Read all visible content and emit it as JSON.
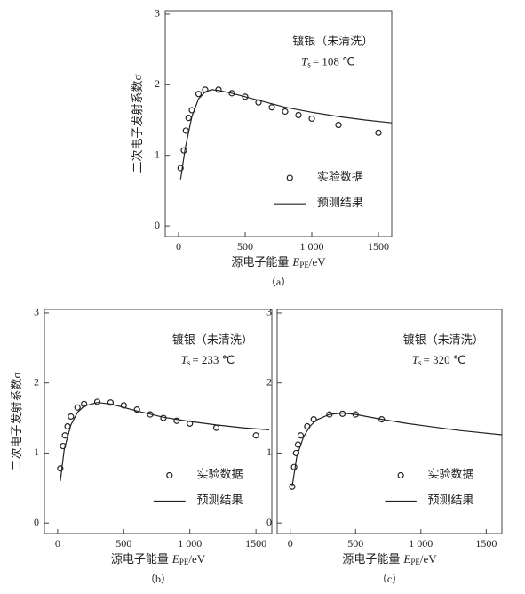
{
  "chart_data": [
    {
      "type": "line",
      "caption": "（a）",
      "y_label": "二次电子发射系数σ",
      "x_label": {
        "text": "源电子能量",
        "symbol": "E",
        "subscript": "PE",
        "unit": "/eV"
      },
      "annotation": {
        "text": "镀银（未清洗）",
        "symbol": "T",
        "subscript": "s",
        "value_text": "= 108 ℃"
      },
      "xlim": [
        -100,
        1600
      ],
      "ylim": [
        -0.15,
        3.05
      ],
      "xticks": [
        0,
        500,
        {
          "value": 1000,
          "label": "1 000"
        },
        1500
      ],
      "yticks": [
        0,
        1,
        2,
        3
      ],
      "series": [
        {
          "name": "实验数据",
          "style": "marker",
          "color": "#222",
          "x": [
            15,
            40,
            55,
            75,
            100,
            150,
            200,
            300,
            400,
            500,
            600,
            700,
            800,
            900,
            1000,
            1200,
            1500
          ],
          "values": [
            0.82,
            1.07,
            1.35,
            1.53,
            1.64,
            1.87,
            1.93,
            1.93,
            1.88,
            1.83,
            1.75,
            1.68,
            1.62,
            1.57,
            1.52,
            1.43,
            1.32
          ]
        },
        {
          "name": "预测结果",
          "style": "line",
          "color": "#222",
          "x": [
            15,
            50,
            100,
            150,
            200,
            250,
            300,
            400,
            600,
            800,
            1000,
            1200,
            1400,
            1600
          ],
          "values": [
            0.66,
            1.1,
            1.55,
            1.8,
            1.9,
            1.93,
            1.92,
            1.88,
            1.78,
            1.68,
            1.61,
            1.55,
            1.5,
            1.46
          ]
        }
      ]
    },
    {
      "type": "line",
      "caption": "（b）",
      "y_label": "二次电子发射系数σ",
      "x_label": {
        "text": "源电子能量",
        "symbol": "E",
        "subscript": "PE",
        "unit": "/eV"
      },
      "annotation": {
        "text": "镀银（未清洗）",
        "symbol": "T",
        "subscript": "s",
        "value_text": "= 233 ℃"
      },
      "xlim": [
        -100,
        1620
      ],
      "ylim": [
        -0.15,
        3.05
      ],
      "xticks": [
        0,
        500,
        {
          "value": 1000,
          "label": "1 000"
        },
        1500
      ],
      "yticks": [
        0,
        1,
        2,
        3
      ],
      "series": [
        {
          "name": "实验数据",
          "style": "marker",
          "color": "#222",
          "x": [
            20,
            40,
            55,
            75,
            100,
            150,
            200,
            300,
            400,
            500,
            600,
            700,
            800,
            900,
            1000,
            1200,
            1500
          ],
          "values": [
            0.78,
            1.1,
            1.25,
            1.38,
            1.52,
            1.65,
            1.7,
            1.73,
            1.72,
            1.68,
            1.62,
            1.55,
            1.5,
            1.46,
            1.42,
            1.36,
            1.25
          ]
        },
        {
          "name": "预测结果",
          "style": "line",
          "color": "#222",
          "x": [
            20,
            50,
            100,
            150,
            200,
            300,
            400,
            600,
            800,
            1000,
            1200,
            1400,
            1600
          ],
          "values": [
            0.6,
            1.05,
            1.4,
            1.58,
            1.67,
            1.72,
            1.7,
            1.6,
            1.51,
            1.45,
            1.4,
            1.36,
            1.33
          ]
        }
      ]
    },
    {
      "type": "line",
      "caption": "（c）",
      "x_label": {
        "text": "源电子能量",
        "symbol": "E",
        "subscript": "PE",
        "unit": "/eV"
      },
      "annotation": {
        "text": "镀银（未清洗）",
        "symbol": "T",
        "subscript": "s",
        "value_text": "= 320 ℃"
      },
      "xlim": [
        -100,
        1620
      ],
      "ylim": [
        -0.15,
        3.05
      ],
      "xticks": [
        0,
        500,
        {
          "value": 1000,
          "label": "1 000"
        },
        1500
      ],
      "yticks": [
        0,
        1,
        2,
        3
      ],
      "series": [
        {
          "name": "实验数据",
          "style": "marker",
          "color": "#222",
          "x": [
            15,
            30,
            45,
            60,
            80,
            130,
            180,
            300,
            400,
            500,
            700
          ],
          "values": [
            0.52,
            0.8,
            1.0,
            1.12,
            1.25,
            1.38,
            1.48,
            1.55,
            1.56,
            1.55,
            1.48
          ]
        },
        {
          "name": "预测结果",
          "style": "line",
          "color": "#222",
          "x": [
            15,
            50,
            100,
            150,
            200,
            300,
            400,
            500,
            700,
            900,
            1100,
            1300,
            1620
          ],
          "values": [
            0.52,
            0.95,
            1.22,
            1.38,
            1.47,
            1.55,
            1.57,
            1.55,
            1.48,
            1.42,
            1.37,
            1.32,
            1.26
          ]
        }
      ]
    }
  ]
}
